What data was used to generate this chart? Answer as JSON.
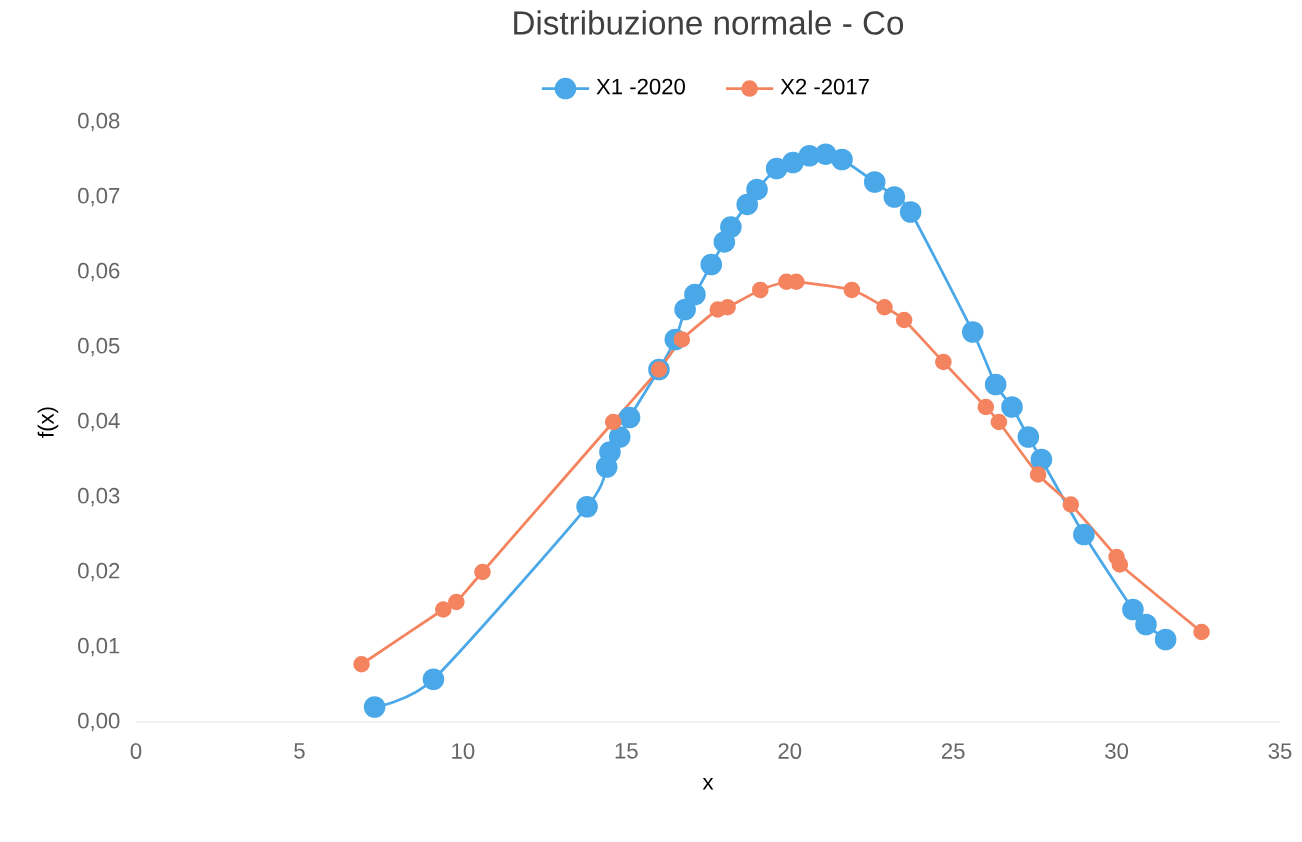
{
  "chart_data": {
    "type": "line",
    "title": "Distribuzione normale - Co",
    "xlabel": "x",
    "ylabel": "f(x)",
    "marker": "circle",
    "legend": "top",
    "grid": false,
    "xlim": [
      0,
      35
    ],
    "xticks": [
      0,
      5,
      10,
      15,
      20,
      25,
      30,
      35
    ],
    "ylim": [
      0,
      0.08
    ],
    "yticks": [
      {
        "value": 0,
        "label": "0,00"
      },
      {
        "value": 0.01,
        "label": "0,01"
      },
      {
        "value": 0.02,
        "label": "0,02"
      },
      {
        "value": 0.03,
        "label": "0,03"
      },
      {
        "value": 0.04,
        "label": "0,04"
      },
      {
        "value": 0.05,
        "label": "0,05"
      },
      {
        "value": 0.06,
        "label": "0,06"
      },
      {
        "value": 0.07,
        "label": "0,07"
      },
      {
        "value": 0.08,
        "label": "0,08"
      }
    ],
    "series": [
      {
        "name": "X1 -2020",
        "color": "#4aa8e8",
        "x": [
          7.3,
          9.1,
          13.8,
          14.4,
          14.5,
          14.8,
          15.1,
          16.0,
          16.5,
          16.8,
          17.1,
          17.6,
          18.0,
          18.2,
          18.7,
          19.0,
          19.6,
          20.1,
          20.6,
          21.1,
          21.6,
          22.6,
          23.2,
          23.7,
          25.6,
          26.3,
          26.8,
          27.3,
          27.7,
          29.0,
          30.5,
          30.9,
          31.5
        ],
        "values": [
          0.002,
          0.0057,
          0.0287,
          0.034,
          0.036,
          0.038,
          0.0406,
          0.047,
          0.051,
          0.055,
          0.057,
          0.061,
          0.064,
          0.066,
          0.069,
          0.071,
          0.0738,
          0.0746,
          0.0755,
          0.0757,
          0.075,
          0.072,
          0.07,
          0.068,
          0.052,
          0.045,
          0.042,
          0.038,
          0.035,
          0.025,
          0.015,
          0.013,
          0.011
        ]
      },
      {
        "name": "X2 -2017",
        "color": "#f4845f",
        "x": [
          6.9,
          9.4,
          9.8,
          10.6,
          14.6,
          16.0,
          16.7,
          17.8,
          18.1,
          19.1,
          19.9,
          20.2,
          21.9,
          22.9,
          23.5,
          24.7,
          26.0,
          26.4,
          27.6,
          28.6,
          30.0,
          30.1,
          32.6
        ],
        "values": [
          0.0077,
          0.015,
          0.016,
          0.02,
          0.04,
          0.047,
          0.051,
          0.055,
          0.0553,
          0.0576,
          0.0587,
          0.0587,
          0.0576,
          0.0553,
          0.0536,
          0.048,
          0.042,
          0.04,
          0.033,
          0.029,
          0.022,
          0.021,
          0.012
        ]
      }
    ]
  }
}
